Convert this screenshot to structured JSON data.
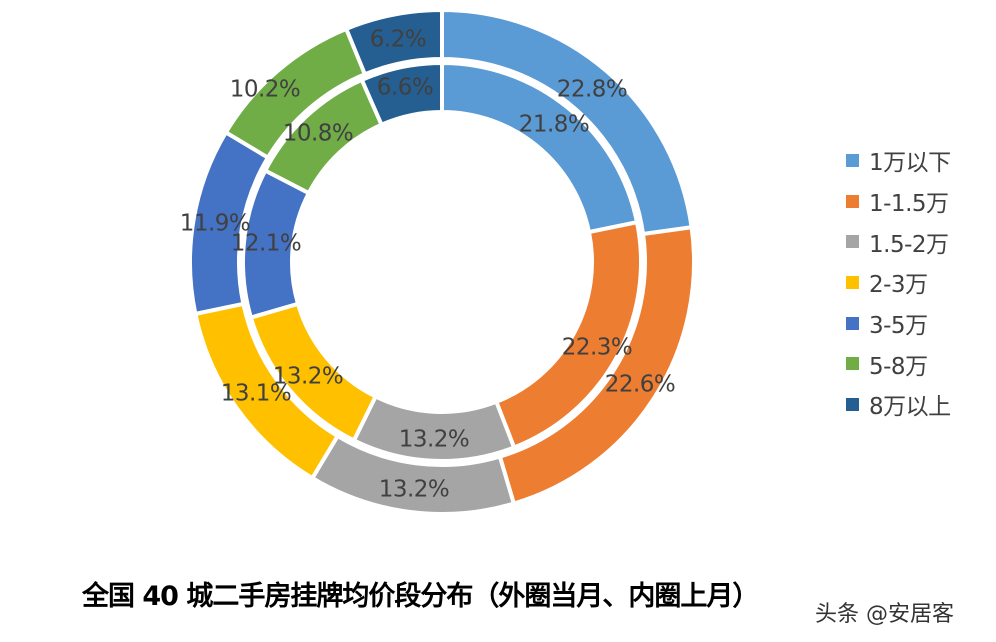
{
  "chart_data": {
    "type": "donut",
    "title": "全国 40 城二手房挂牌均价段分布（外圈当月、内圈上月）",
    "categories": [
      "1万以下",
      "1-1.5万",
      "1.5-2万",
      "2-3万",
      "3-5万",
      "5-8万",
      "8万以上"
    ],
    "colors": [
      "#5B9BD5",
      "#ED7D31",
      "#A5A5A5",
      "#FFC000",
      "#4472C4",
      "#70AD47",
      "#255E91"
    ],
    "series": [
      {
        "name": "外圈当月",
        "ring": "outer",
        "values": [
          22.8,
          22.6,
          13.2,
          13.1,
          11.9,
          10.2,
          6.2
        ],
        "labels": [
          "22.8%",
          "22.6%",
          "13.2%",
          "13.1%",
          "11.9%",
          "10.2%",
          "6.2%"
        ]
      },
      {
        "name": "内圈上月",
        "ring": "inner",
        "values": [
          21.8,
          22.3,
          13.2,
          13.2,
          12.1,
          10.8,
          6.6
        ],
        "labels": [
          "21.8%",
          "22.3%",
          "13.2%",
          "13.2%",
          "12.1%",
          "10.8%",
          "6.6%"
        ]
      }
    ],
    "legend_position": "right"
  },
  "legend": {
    "items": [
      {
        "label": "1万以下",
        "color": "#5B9BD5"
      },
      {
        "label": "1-1.5万",
        "color": "#ED7D31"
      },
      {
        "label": "1.5-2万",
        "color": "#A5A5A5"
      },
      {
        "label": "2-3万",
        "color": "#FFC000"
      },
      {
        "label": "3-5万",
        "color": "#4472C4"
      },
      {
        "label": "5-8万",
        "color": "#70AD47"
      },
      {
        "label": "8万以上",
        "color": "#255E91"
      }
    ]
  },
  "title": "全国 40 城二手房挂牌均价段分布（外圈当月、内圈上月）",
  "watermark": "头条 @安居客"
}
